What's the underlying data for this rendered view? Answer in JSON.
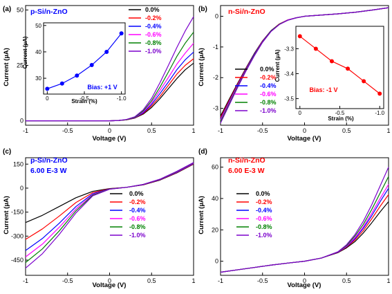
{
  "colors": {
    "s0": "#000000",
    "s1": "#ff0000",
    "s2": "#0000ff",
    "s3": "#ff00ff",
    "s4": "#008000",
    "s5": "#7b00cc"
  },
  "chart_data": [
    {
      "panel": "(a)",
      "type": "line",
      "header": [
        "p-Si/n-ZnO"
      ],
      "header_color": "#0000ff",
      "xlabel": "Voltage (V)",
      "ylabel": "Current (µA)",
      "xlim": [
        -1,
        1
      ],
      "ylim": [
        -2,
        52
      ],
      "xticks": [
        -1,
        -0.5,
        0,
        0.5,
        1
      ],
      "xtick_labels": [
        "-1",
        "-0.5",
        "0",
        "0.5",
        "1"
      ],
      "yticks": [
        0,
        25,
        50
      ],
      "ytick_labels": [
        "0",
        "25",
        "50"
      ],
      "legend_position": "top-right",
      "x": [
        -1.0,
        -0.8,
        -0.6,
        -0.4,
        -0.2,
        0.0,
        0.1,
        0.2,
        0.3,
        0.4,
        0.5,
        0.6,
        0.7,
        0.8,
        0.9,
        1.0
      ],
      "series": [
        {
          "name": "0.0%",
          "color_key": "s0",
          "values": [
            0,
            0,
            0,
            0,
            0,
            0,
            0.1,
            0.4,
            1.2,
            3.0,
            6.0,
            10.0,
            14.5,
            19.0,
            23.0,
            26.0
          ]
        },
        {
          "name": "-0.2%",
          "color_key": "s1",
          "values": [
            0,
            0,
            0,
            0,
            0,
            0,
            0.1,
            0.4,
            1.3,
            3.3,
            6.7,
            11.0,
            16.0,
            21.0,
            25.0,
            28.0
          ]
        },
        {
          "name": "-0.4%",
          "color_key": "s2",
          "values": [
            0,
            0,
            0,
            0,
            0,
            0,
            0.1,
            0.5,
            1.4,
            3.6,
            7.4,
            12.3,
            17.5,
            23.0,
            27.5,
            31.0
          ]
        },
        {
          "name": "-0.6%",
          "color_key": "s3",
          "values": [
            0,
            0,
            0,
            0,
            0,
            0,
            0.1,
            0.5,
            1.5,
            4.0,
            8.2,
            13.7,
            19.5,
            25.5,
            30.5,
            35.0
          ]
        },
        {
          "name": "-0.8%",
          "color_key": "s4",
          "values": [
            0,
            0,
            0,
            0,
            0,
            0,
            0.1,
            0.5,
            1.6,
            4.4,
            9.0,
            15.2,
            22.0,
            29.0,
            35.0,
            40.0
          ]
        },
        {
          "name": "-1.0%",
          "color_key": "s5",
          "values": [
            0,
            0,
            0,
            0,
            0,
            0,
            0.1,
            0.6,
            1.8,
            4.9,
            10.1,
            17.2,
            25.0,
            33.0,
            40.5,
            47.0
          ]
        }
      ],
      "inset": {
        "type": "line",
        "xlabel": "Strain (%)",
        "ylabel": "Current (µA)",
        "xlim": [
          0.05,
          -1.05
        ],
        "ylim": [
          24,
          51
        ],
        "xticks": [
          0,
          -0.5,
          -1.0
        ],
        "xtick_labels": [
          "0",
          "-0.5",
          "-1.0"
        ],
        "yticks": [
          30,
          40,
          50
        ],
        "ytick_labels": [
          "30",
          "40",
          "50"
        ],
        "annotation": "Bias: +1 V",
        "color": "#0000ff",
        "x": [
          0,
          -0.2,
          -0.4,
          -0.6,
          -0.8,
          -1.0
        ],
        "y": [
          26,
          28,
          31,
          35,
          40,
          47
        ]
      }
    },
    {
      "panel": "(b)",
      "type": "line",
      "header": [
        "n-Si/n-ZnO"
      ],
      "header_color": "#ff0000",
      "xlabel": "Voltage (V)",
      "ylabel": "Current (µA)",
      "xlim": [
        -1,
        1
      ],
      "ylim": [
        -3.55,
        0.35
      ],
      "xticks": [
        -1,
        -0.5,
        0,
        0.5,
        1
      ],
      "xtick_labels": [
        "-1",
        "-0.5",
        "0",
        "0.5",
        "1"
      ],
      "yticks": [
        -3,
        -2,
        -1,
        0
      ],
      "ytick_labels": [
        "-3",
        "-2",
        "-1",
        "0"
      ],
      "legend_position": "bottom-left",
      "x": [
        -1.0,
        -0.9,
        -0.8,
        -0.7,
        -0.6,
        -0.5,
        -0.4,
        -0.3,
        -0.2,
        -0.1,
        0.0,
        0.2,
        0.4,
        0.6,
        0.8,
        1.0
      ],
      "series": [
        {
          "name": "0.0%",
          "color_key": "s0",
          "values": [
            -3.25,
            -2.72,
            -2.2,
            -1.7,
            -1.22,
            -0.8,
            -0.47,
            -0.25,
            -0.12,
            -0.05,
            0.0,
            0.04,
            0.08,
            0.13,
            0.2,
            0.28
          ]
        },
        {
          "name": "-0.2%",
          "color_key": "s1",
          "values": [
            -3.3,
            -2.76,
            -2.23,
            -1.72,
            -1.24,
            -0.81,
            -0.48,
            -0.25,
            -0.12,
            -0.05,
            0.0,
            0.04,
            0.08,
            0.13,
            0.2,
            0.28
          ]
        },
        {
          "name": "-0.4%",
          "color_key": "s2",
          "values": [
            -3.35,
            -2.8,
            -2.26,
            -1.74,
            -1.25,
            -0.82,
            -0.48,
            -0.26,
            -0.12,
            -0.05,
            0.0,
            0.04,
            0.08,
            0.13,
            0.2,
            0.28
          ]
        },
        {
          "name": "-0.6%",
          "color_key": "s3",
          "values": [
            -3.38,
            -2.83,
            -2.28,
            -1.76,
            -1.27,
            -0.83,
            -0.49,
            -0.26,
            -0.12,
            -0.05,
            0.0,
            0.04,
            0.08,
            0.13,
            0.2,
            0.28
          ]
        },
        {
          "name": "-0.8%",
          "color_key": "s4",
          "values": [
            -3.43,
            -2.87,
            -2.31,
            -1.78,
            -1.28,
            -0.84,
            -0.49,
            -0.26,
            -0.13,
            -0.05,
            0.0,
            0.04,
            0.08,
            0.13,
            0.2,
            0.28
          ]
        },
        {
          "name": "-1.0%",
          "color_key": "s5",
          "values": [
            -3.48,
            -2.91,
            -2.34,
            -1.8,
            -1.3,
            -0.85,
            -0.5,
            -0.27,
            -0.13,
            -0.05,
            0.0,
            0.04,
            0.08,
            0.13,
            0.2,
            0.28
          ]
        }
      ],
      "inset": {
        "type": "line",
        "xlabel": "Strain (%)",
        "ylabel": "Current (µA)",
        "xlim": [
          0.05,
          -1.05
        ],
        "ylim": [
          -3.54,
          -3.21
        ],
        "xticks": [
          0,
          -0.5,
          -1.0
        ],
        "xtick_labels": [
          "0",
          "-0.5",
          "-1.0"
        ],
        "yticks": [
          -3.3,
          -3.4,
          -3.5
        ],
        "ytick_labels": [
          "-3.3",
          "-3.4",
          "-3.5"
        ],
        "annotation": "Bias: -1 V",
        "color": "#ff0000",
        "x": [
          0,
          -0.2,
          -0.4,
          -0.6,
          -0.8,
          -1.0
        ],
        "y": [
          -3.25,
          -3.3,
          -3.35,
          -3.38,
          -3.43,
          -3.48
        ]
      }
    },
    {
      "panel": "(c)",
      "type": "line",
      "header": [
        "p-Si/n-ZnO",
        "6.00 E-3 W"
      ],
      "header_color": "#0000ff",
      "xlabel": "Voltage (V)",
      "ylabel": "Current (µA)",
      "xlim": [
        -1,
        1
      ],
      "ylim": [
        -545,
        190
      ],
      "xticks": [
        -1,
        -0.5,
        0,
        0.5,
        1
      ],
      "xtick_labels": [
        "-1",
        "-0.5",
        "0",
        "0.5",
        "1"
      ],
      "yticks": [
        -450,
        -300,
        -150,
        0,
        150
      ],
      "ytick_labels": [
        "-450",
        "-300",
        "-150",
        "0",
        "150"
      ],
      "legend_position": "right",
      "x": [
        -1.0,
        -0.8,
        -0.6,
        -0.4,
        -0.2,
        0.0,
        0.2,
        0.4,
        0.6,
        0.8,
        1.0
      ],
      "series": [
        {
          "name": "0.0%",
          "color_key": "s0",
          "values": [
            -215,
            -170,
            -115,
            -60,
            -20,
            -3,
            5,
            20,
            50,
            95,
            150
          ]
        },
        {
          "name": "-0.2%",
          "color_key": "s1",
          "values": [
            -320,
            -255,
            -175,
            -90,
            -28,
            -4,
            5,
            21,
            52,
            97,
            152
          ]
        },
        {
          "name": "-0.4%",
          "color_key": "s2",
          "values": [
            -390,
            -315,
            -220,
            -115,
            -35,
            -5,
            5,
            22,
            53,
            99,
            154
          ]
        },
        {
          "name": "-0.6%",
          "color_key": "s3",
          "values": [
            -430,
            -350,
            -245,
            -130,
            -40,
            -6,
            5,
            22,
            54,
            101,
            156
          ]
        },
        {
          "name": "-0.8%",
          "color_key": "s4",
          "values": [
            -465,
            -380,
            -268,
            -142,
            -44,
            -6,
            5,
            23,
            55,
            103,
            158
          ]
        },
        {
          "name": "-1.0%",
          "color_key": "s5",
          "values": [
            -500,
            -410,
            -290,
            -155,
            -48,
            -7,
            5,
            23,
            56,
            105,
            160
          ]
        }
      ]
    },
    {
      "panel": "(d)",
      "type": "line",
      "header": [
        "n-Si/n-ZnO",
        "6.00 E-3 W"
      ],
      "header_color": "#ff0000",
      "xlabel": "Voltage (V)",
      "ylabel": "Current (µA)",
      "xlim": [
        -1,
        1
      ],
      "ylim": [
        -9,
        66
      ],
      "xticks": [
        -1,
        -0.5,
        0,
        0.5,
        1
      ],
      "xtick_labels": [
        "-1",
        "-0.5",
        "0",
        "0.5",
        "1"
      ],
      "yticks": [
        0,
        20,
        40,
        60
      ],
      "ytick_labels": [
        "0",
        "20",
        "40",
        "60"
      ],
      "legend_position": "top-right",
      "x": [
        -1.0,
        -0.8,
        -0.6,
        -0.4,
        -0.2,
        0.0,
        0.2,
        0.4,
        0.5,
        0.6,
        0.7,
        0.8,
        0.9,
        1.0
      ],
      "series": [
        {
          "name": "0.0%",
          "color_key": "s0",
          "values": [
            -7,
            -5.5,
            -4,
            -2.5,
            -1.2,
            0,
            2,
            5.5,
            8.5,
            12.5,
            18,
            24.5,
            31.5,
            38
          ]
        },
        {
          "name": "-0.2%",
          "color_key": "s1",
          "values": [
            -7,
            -5.5,
            -4,
            -2.5,
            -1.2,
            0,
            2,
            5.7,
            9,
            13.5,
            19.5,
            27,
            35,
            42.5
          ]
        },
        {
          "name": "-0.4%",
          "color_key": "s2",
          "values": [
            -7,
            -5.5,
            -4,
            -2.5,
            -1.2,
            0,
            2,
            5.8,
            9.3,
            14.3,
            21,
            29,
            38,
            46.5
          ]
        },
        {
          "name": "-0.6%",
          "color_key": "s3",
          "values": [
            -7,
            -5.5,
            -4,
            -2.5,
            -1.2,
            0,
            2,
            5.9,
            9.6,
            15,
            22,
            30.5,
            40,
            49
          ]
        },
        {
          "name": "-0.8%",
          "color_key": "s4",
          "values": [
            -7,
            -5.5,
            -4,
            -2.5,
            -1.2,
            0,
            2,
            6.0,
            10,
            16,
            23.5,
            33,
            43.5,
            54
          ]
        },
        {
          "name": "-1.0%",
          "color_key": "s5",
          "values": [
            -7,
            -5.5,
            -4,
            -2.5,
            -1.2,
            0,
            2,
            6.1,
            10.5,
            17,
            25.5,
            36,
            48,
            60
          ]
        }
      ]
    }
  ]
}
